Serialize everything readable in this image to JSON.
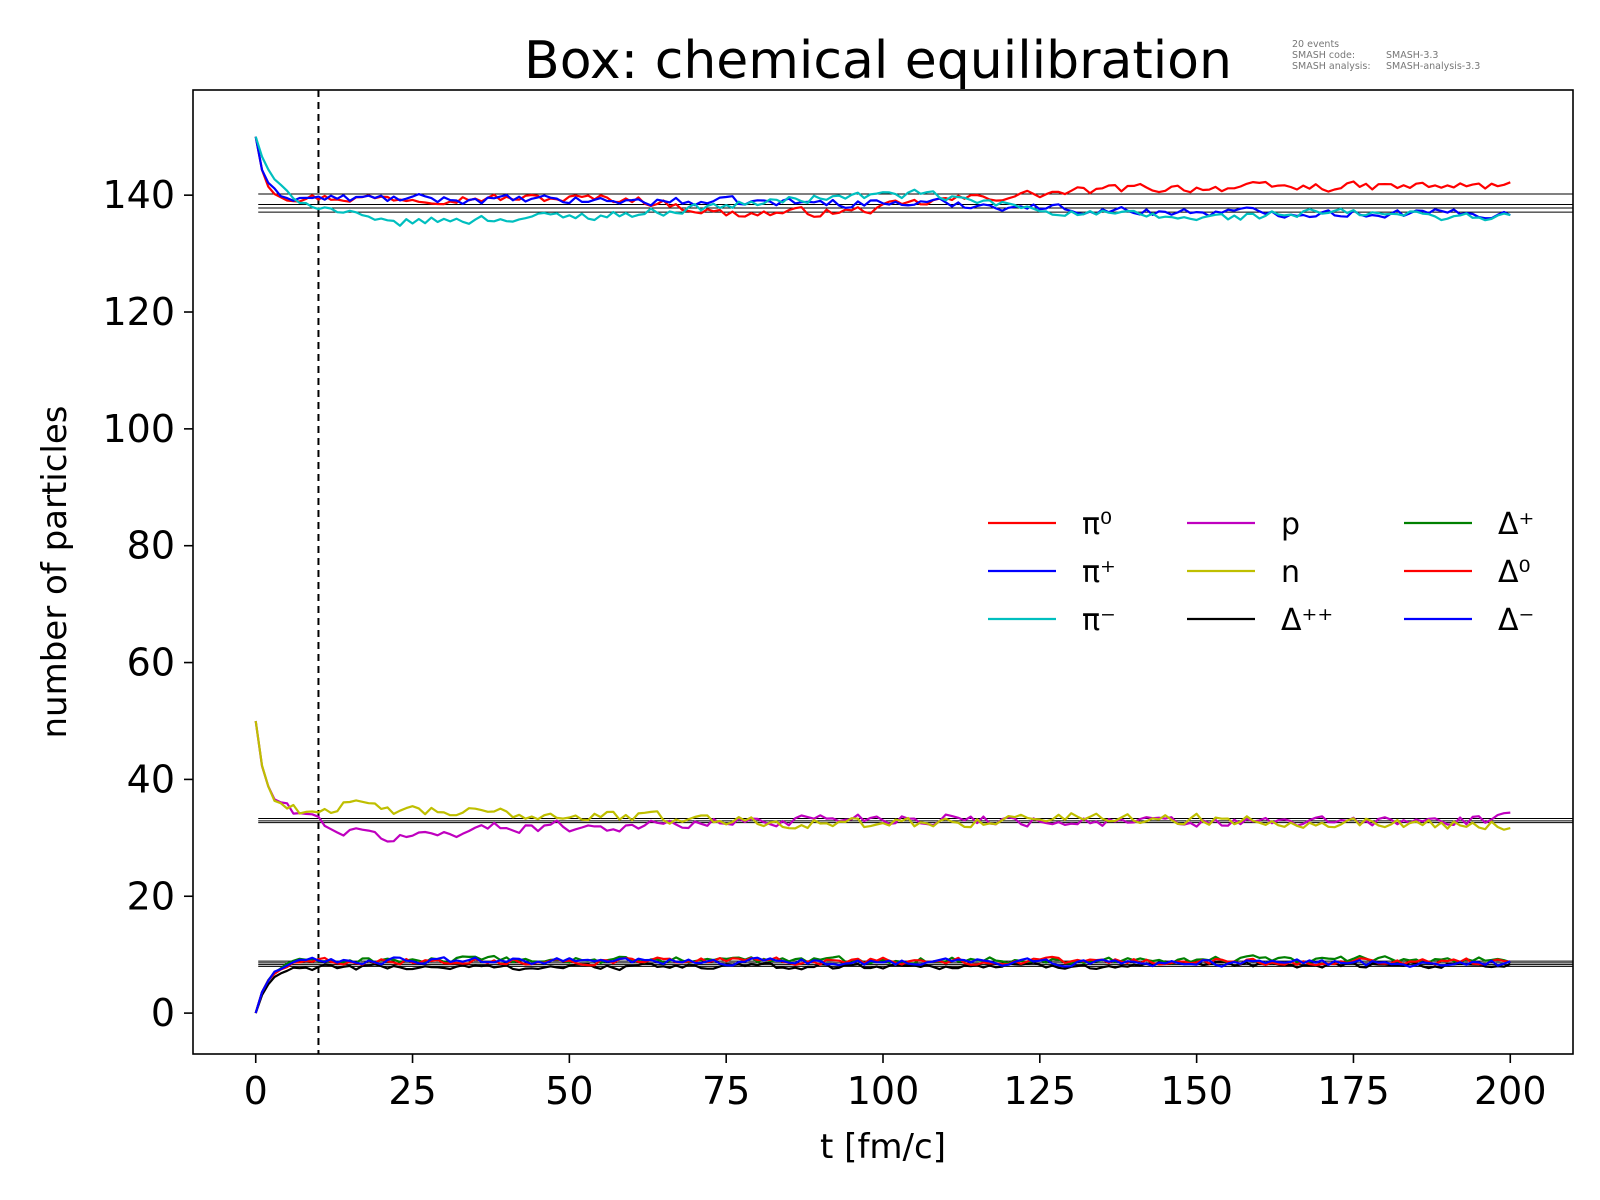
{
  "chart_data": {
    "type": "line",
    "title": "Box: chemical equilibration",
    "meta": {
      "events": "20 events",
      "code_label": "SMASH code:",
      "code_value": "SMASH-3.3",
      "analysis_label": "SMASH analysis:",
      "analysis_value": "SMASH-analysis-3.3"
    },
    "xlabel": "t [fm/c]",
    "ylabel": "number of particles",
    "xlim": [
      -10,
      210
    ],
    "ylim": [
      -7,
      158
    ],
    "xticks": [
      0,
      25,
      50,
      75,
      100,
      125,
      150,
      175,
      200
    ],
    "yticks": [
      0,
      20,
      40,
      60,
      80,
      100,
      120,
      140
    ],
    "grid": false,
    "legend": {
      "placement": "center-right",
      "columns": 3
    },
    "vline": {
      "x": 10,
      "style": "dashed",
      "color": "#000000"
    },
    "hlines": [
      140.2,
      138.4,
      137.8,
      137.1,
      33.3,
      32.9,
      32.6,
      8.9,
      8.6,
      8.3,
      8.0
    ],
    "series": [
      {
        "name": "π⁰",
        "color": "#ff0000",
        "start": 150,
        "init": "decay",
        "eq": 138.5,
        "tau": 1.3,
        "amp": 0.7,
        "drift": [
          [
            0,
            139.6
          ],
          [
            60,
            139.4
          ],
          [
            75,
            136.8
          ],
          [
            95,
            137.2
          ],
          [
            110,
            139.2
          ],
          [
            140,
            141.2
          ],
          [
            200,
            141.6
          ]
        ]
      },
      {
        "name": "π⁺",
        "color": "#0000ff",
        "start": 150,
        "init": "decay",
        "eq": 139,
        "tau": 1.3,
        "amp": 0.7,
        "drift": [
          [
            0,
            139.6
          ],
          [
            80,
            138.8
          ],
          [
            110,
            138.6
          ],
          [
            140,
            137.2
          ],
          [
            200,
            136.8
          ]
        ]
      },
      {
        "name": "π⁻",
        "color": "#00bfbf",
        "start": 150,
        "init": "decay",
        "eq": 137,
        "tau": 2.5,
        "amp": 0.7,
        "drift": [
          [
            0,
            140
          ],
          [
            12,
            137.5
          ],
          [
            20,
            135.2
          ],
          [
            28,
            135.6
          ],
          [
            60,
            136.8
          ],
          [
            90,
            139.6
          ],
          [
            105,
            140.2
          ],
          [
            130,
            137
          ],
          [
            150,
            136
          ],
          [
            170,
            137
          ],
          [
            200,
            136.2
          ]
        ]
      },
      {
        "name": "p",
        "color": "#bf00bf",
        "start": 50,
        "init": "decay",
        "eq": 32.5,
        "tau": 1.3,
        "amp": 0.9,
        "drift": [
          [
            0,
            36
          ],
          [
            8,
            34
          ],
          [
            14,
            31
          ],
          [
            22,
            30
          ],
          [
            40,
            32
          ],
          [
            60,
            32
          ],
          [
            95,
            33.5
          ],
          [
            150,
            32.5
          ],
          [
            200,
            33
          ]
        ]
      },
      {
        "name": "n",
        "color": "#bfbf00",
        "start": 50,
        "init": "decay",
        "eq": 33,
        "tau": 1.3,
        "amp": 0.9,
        "drift": [
          [
            0,
            36
          ],
          [
            8,
            34.5
          ],
          [
            14,
            35.5
          ],
          [
            25,
            34.5
          ],
          [
            60,
            33.6
          ],
          [
            100,
            32.2
          ],
          [
            130,
            33.6
          ],
          [
            200,
            32.2
          ]
        ]
      },
      {
        "name": "Δ⁺⁺",
        "color": "#000000",
        "start": 0,
        "init": "rise",
        "eq": 8,
        "tau": 2,
        "amp": 0.5,
        "drift": [
          [
            0,
            7.8
          ],
          [
            200,
            8.3
          ]
        ]
      },
      {
        "name": "Δ⁺",
        "color": "#008000",
        "start": 0,
        "init": "rise",
        "eq": 8.8,
        "tau": 2,
        "amp": 0.55,
        "drift": [
          [
            0,
            9
          ],
          [
            200,
            9.2
          ]
        ]
      },
      {
        "name": "Δ⁰",
        "color": "#ff0000",
        "start": 0,
        "init": "rise",
        "eq": 8.8,
        "tau": 2,
        "amp": 0.55,
        "drift": [
          [
            0,
            9
          ],
          [
            200,
            8.8
          ]
        ]
      },
      {
        "name": "Δ⁻",
        "color": "#0000ff",
        "start": 0,
        "init": "rise",
        "eq": 8.5,
        "tau": 2,
        "amp": 0.55,
        "drift": [
          [
            0,
            9
          ],
          [
            200,
            8.5
          ]
        ]
      }
    ]
  }
}
